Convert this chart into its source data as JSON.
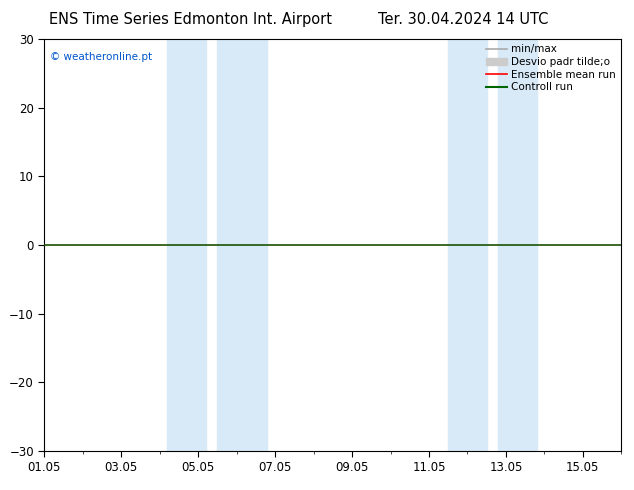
{
  "title_left": "ENS Time Series Edmonton Int. Airport",
  "title_right": "Ter. 30.04.2024 14 UTC",
  "ylim": [
    -30,
    30
  ],
  "yticks": [
    -30,
    -20,
    -10,
    0,
    10,
    20,
    30
  ],
  "xlim_start": 0,
  "xlim_end": 15,
  "xtick_positions": [
    0,
    2,
    4,
    6,
    8,
    10,
    12,
    14
  ],
  "xtick_labels": [
    "01.05",
    "03.05",
    "05.05",
    "07.05",
    "09.05",
    "11.05",
    "13.05",
    "15.05"
  ],
  "blue_bands": [
    [
      3.2,
      4.2
    ],
    [
      4.5,
      5.8
    ],
    [
      10.5,
      11.5
    ],
    [
      11.8,
      12.8
    ]
  ],
  "blue_band_color": "#d8eaf8",
  "zero_line_color": "#1a5200",
  "watermark": "© weatheronline.pt",
  "watermark_color": "#0055cc",
  "legend_items": [
    {
      "label": "min/max",
      "color": "#aaaaaa",
      "lw": 1.2,
      "patch": false
    },
    {
      "label": "Desvio padr tilde;o",
      "color": "#cccccc",
      "lw": 8,
      "patch": true
    },
    {
      "label": "Ensemble mean run",
      "color": "#ff0000",
      "lw": 1.2,
      "patch": false
    },
    {
      "label": "Controll run",
      "color": "#006600",
      "lw": 1.5,
      "patch": false
    }
  ],
  "background_color": "#ffffff",
  "title_fontsize": 10.5,
  "tick_fontsize": 8.5,
  "legend_fontsize": 7.5,
  "fig_width": 6.34,
  "fig_height": 4.9,
  "dpi": 100
}
